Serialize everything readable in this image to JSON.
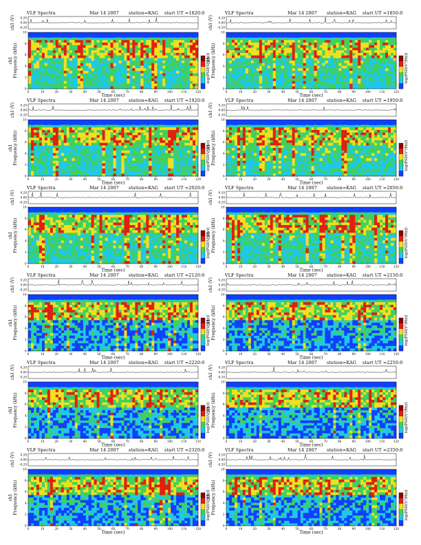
{
  "header": {
    "title": "VLF Spectra",
    "date": "Mar 14 2007",
    "station": "station=KAG",
    "start_prefix": "start  UT ="
  },
  "labels": {
    "xlabel": "Time  (sec)",
    "ylabel_top": "ch1 (V)",
    "ylabel_spec": "Frequency (kHz)",
    "ylabel_spec_left": "ch1",
    "colorbar": "log(PSD(V²/Hz))"
  },
  "palette": {
    "blue": "#1040ff",
    "cyan": "#20c8e8",
    "green": "#40d060",
    "yellow": "#f0e020",
    "red": "#e02010",
    "darkred": "#900000"
  },
  "chart_data": [
    {
      "type": "heatmap",
      "start_ut": "1820:0",
      "xlim": [
        0,
        120
      ],
      "ylim_freq": [
        0,
        10
      ],
      "ch1_ylim": [
        -0.2,
        0.2
      ],
      "ch1_ticks": [
        "0.20",
        "0.00",
        "-0.20"
      ],
      "freq_ticks": [
        0,
        2,
        4,
        6,
        8,
        10
      ],
      "time_ticks": [
        0,
        10,
        20,
        30,
        40,
        50,
        60,
        70,
        80,
        90,
        100,
        110,
        120
      ]
    },
    {
      "type": "heatmap",
      "start_ut": "1850:0",
      "xlim": [
        0,
        120
      ],
      "ylim_freq": [
        0,
        10
      ],
      "ch1_ylim": [
        -0.2,
        0.2
      ],
      "ch1_ticks": [
        "0.20",
        "0.00",
        "-0.20"
      ],
      "freq_ticks": [
        0,
        2,
        4,
        6,
        8,
        10
      ],
      "time_ticks": [
        0,
        10,
        20,
        30,
        40,
        50,
        60,
        70,
        80,
        90,
        100,
        110,
        120
      ]
    },
    {
      "type": "heatmap",
      "start_ut": "1920:0",
      "xlim": [
        0,
        120
      ],
      "ylim_freq": [
        0,
        10
      ],
      "ch1_ylim": [
        -0.2,
        0.2
      ],
      "ch1_ticks": [
        "0.20",
        "0.00",
        "-0.20"
      ],
      "freq_ticks": [
        0,
        2,
        4,
        6,
        8,
        10
      ],
      "time_ticks": [
        0,
        10,
        20,
        30,
        40,
        50,
        60,
        70,
        80,
        90,
        100,
        110,
        120
      ]
    },
    {
      "type": "heatmap",
      "start_ut": "1950:0",
      "xlim": [
        0,
        120
      ],
      "ylim_freq": [
        0,
        10
      ],
      "ch1_ylim": [
        -0.2,
        0.2
      ],
      "ch1_ticks": [
        "0.20",
        "0.00",
        "-0.20"
      ],
      "freq_ticks": [
        0,
        2,
        4,
        6,
        8,
        10
      ],
      "time_ticks": [
        0,
        10,
        20,
        30,
        40,
        50,
        60,
        70,
        80,
        90,
        100,
        110,
        120
      ]
    },
    {
      "type": "heatmap",
      "start_ut": "2020:0",
      "xlim": [
        0,
        120
      ],
      "ylim_freq": [
        0,
        10
      ],
      "ch1_ylim": [
        -0.2,
        0.2
      ],
      "ch1_ticks": [
        "0.20",
        "0.00",
        "-0.20"
      ],
      "freq_ticks": [
        0,
        2,
        4,
        6,
        8,
        10
      ],
      "time_ticks": [
        0,
        10,
        20,
        30,
        40,
        50,
        60,
        70,
        80,
        90,
        100,
        110,
        120
      ]
    },
    {
      "type": "heatmap",
      "start_ut": "2050:0",
      "xlim": [
        0,
        120
      ],
      "ylim_freq": [
        0,
        10
      ],
      "ch1_ylim": [
        -0.2,
        0.2
      ],
      "ch1_ticks": [
        "0.20",
        "0.00",
        "-0.20"
      ],
      "freq_ticks": [
        0,
        2,
        4,
        6,
        8,
        10
      ],
      "time_ticks": [
        0,
        10,
        20,
        30,
        40,
        50,
        60,
        70,
        80,
        90,
        100,
        110,
        120
      ]
    },
    {
      "type": "heatmap",
      "start_ut": "2120:0",
      "xlim": [
        0,
        120
      ],
      "ylim_freq": [
        0,
        10
      ],
      "ch1_ylim": [
        -0.2,
        0.2
      ],
      "ch1_ticks": [
        "0.20",
        "0.00",
        "-0.20"
      ],
      "freq_ticks": [
        0,
        2,
        4,
        6,
        8,
        10
      ],
      "time_ticks": [
        0,
        10,
        20,
        30,
        40,
        50,
        60,
        70,
        80,
        90,
        100,
        110,
        120
      ]
    },
    {
      "type": "heatmap",
      "start_ut": "2150:0",
      "xlim": [
        0,
        120
      ],
      "ylim_freq": [
        0,
        10
      ],
      "ch1_ylim": [
        -0.2,
        0.2
      ],
      "ch1_ticks": [
        "0.20",
        "0.00",
        "-0.20"
      ],
      "freq_ticks": [
        0,
        2,
        4,
        6,
        8,
        10
      ],
      "time_ticks": [
        0,
        10,
        20,
        30,
        40,
        50,
        60,
        70,
        80,
        90,
        100,
        110,
        120
      ]
    },
    {
      "type": "heatmap",
      "start_ut": "2220:0",
      "xlim": [
        0,
        120
      ],
      "ylim_freq": [
        0,
        10
      ],
      "ch1_ylim": [
        -0.2,
        0.2
      ],
      "ch1_ticks": [
        "0.20",
        "0.00",
        "-0.20"
      ],
      "freq_ticks": [
        0,
        2,
        4,
        6,
        8,
        10
      ],
      "time_ticks": [
        0,
        10,
        20,
        30,
        40,
        50,
        60,
        70,
        80,
        90,
        100,
        110,
        120
      ]
    },
    {
      "type": "heatmap",
      "start_ut": "2250:0",
      "xlim": [
        0,
        120
      ],
      "ylim_freq": [
        0,
        10
      ],
      "ch1_ylim": [
        -0.2,
        0.2
      ],
      "ch1_ticks": [
        "0.20",
        "0.00",
        "-0.20"
      ],
      "freq_ticks": [
        0,
        2,
        4,
        6,
        8,
        10
      ],
      "time_ticks": [
        0,
        10,
        20,
        30,
        40,
        50,
        60,
        70,
        80,
        90,
        100,
        110,
        120
      ]
    },
    {
      "type": "heatmap",
      "start_ut": "2320:0",
      "xlim": [
        0,
        120
      ],
      "ylim_freq": [
        0,
        10
      ],
      "ch1_ylim": [
        -0.2,
        0.2
      ],
      "ch1_ticks": [
        "0.20",
        "0.00",
        "-0.20"
      ],
      "freq_ticks": [
        0,
        2,
        4,
        6,
        8,
        10
      ],
      "time_ticks": [
        0,
        10,
        20,
        30,
        40,
        50,
        60,
        70,
        80,
        90,
        100,
        110,
        120
      ]
    },
    {
      "type": "heatmap",
      "start_ut": "2350:0",
      "xlim": [
        0,
        120
      ],
      "ylim_freq": [
        0,
        10
      ],
      "ch1_ylim": [
        -0.2,
        0.2
      ],
      "ch1_ticks": [
        "0.20",
        "0.00",
        "-0.20"
      ],
      "freq_ticks": [
        0,
        2,
        4,
        6,
        8,
        10
      ],
      "time_ticks": [
        0,
        10,
        20,
        30,
        40,
        50,
        60,
        70,
        80,
        90,
        100,
        110,
        120
      ]
    }
  ]
}
